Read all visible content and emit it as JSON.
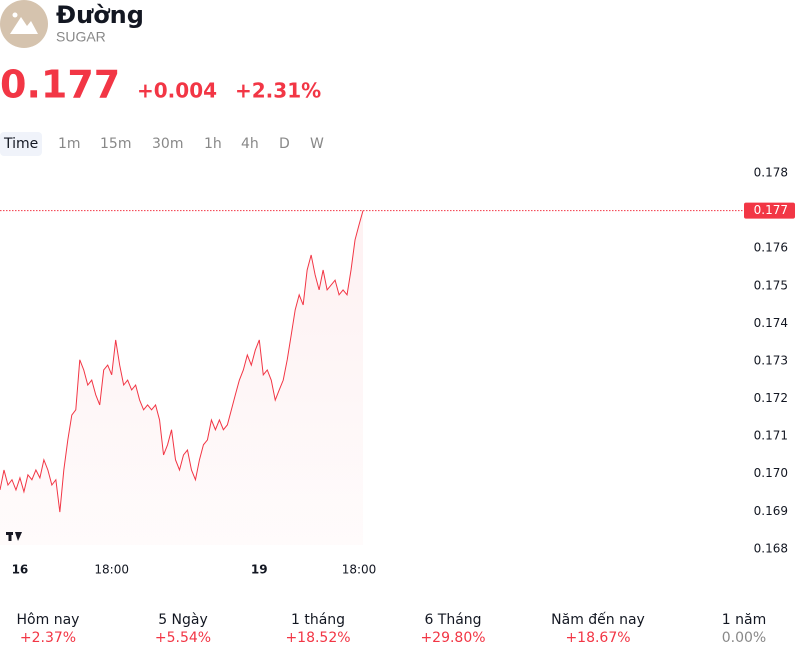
{
  "header": {
    "name": "Đường",
    "symbol": "SUGAR",
    "price": "0.177",
    "change": "+0.004",
    "change_percent": "+2.31%"
  },
  "intervals": [
    "Time",
    "1m",
    "15m",
    "30m",
    "1h",
    "4h",
    "D",
    "W"
  ],
  "chart_data": {
    "type": "line",
    "color": "#f23645",
    "categories": [
      null,
      null,
      null,
      null,
      null,
      "16",
      null,
      null,
      null,
      null,
      null,
      null,
      null,
      null,
      null,
      null,
      null,
      null,
      null,
      null,
      null,
      null,
      null,
      null,
      null,
      null,
      null,
      null,
      "18:00",
      null,
      null,
      null,
      null,
      null,
      null,
      null,
      null,
      null,
      null,
      null,
      null,
      null,
      null,
      null,
      null,
      null,
      null,
      null,
      null,
      null,
      null,
      null,
      null,
      null,
      null,
      null,
      null,
      null,
      null,
      null,
      null,
      null,
      null,
      null,
      null,
      "19",
      null,
      null,
      null,
      null,
      null,
      null,
      null,
      null,
      null,
      null,
      null,
      null,
      null,
      null,
      null,
      null,
      null,
      null,
      null,
      null,
      null,
      null,
      null,
      null,
      "18:00",
      null
    ],
    "values": [
      0.16957,
      0.1701,
      0.1697,
      0.16984,
      0.16957,
      0.16989,
      0.16952,
      0.16997,
      0.16984,
      0.1701,
      0.16989,
      0.17037,
      0.1701,
      0.1697,
      0.16984,
      0.16898,
      0.1701,
      0.1709,
      0.17156,
      0.1717,
      0.17303,
      0.17276,
      0.17236,
      0.17249,
      0.1721,
      0.17183,
      0.17276,
      0.17289,
      0.17263,
      0.17356,
      0.17289,
      0.17236,
      0.17249,
      0.17223,
      0.17236,
      0.17196,
      0.1717,
      0.17183,
      0.1717,
      0.17183,
      0.17143,
      0.1705,
      0.17077,
      0.17117,
      0.17037,
      0.1701,
      0.1705,
      0.17063,
      0.1701,
      0.16984,
      0.17037,
      0.17077,
      0.1709,
      0.17143,
      0.17117,
      0.17143,
      0.17117,
      0.1713,
      0.1717,
      0.1721,
      0.17249,
      0.17276,
      0.17316,
      0.17289,
      0.17329,
      0.17356,
      0.17263,
      0.17276,
      0.17249,
      0.17196,
      0.17223,
      0.17249,
      0.17303,
      0.17369,
      0.17436,
      0.17476,
      0.17449,
      0.17542,
      0.17582,
      0.17529,
      0.17489,
      0.17542,
      0.17489,
      0.17502,
      0.17515,
      0.17476,
      0.17489,
      0.17476,
      0.17542,
      0.17622,
      0.17662,
      0.177
    ],
    "last_price": 0.177,
    "ylim": [
      0.1677,
      0.1785
    ],
    "yticks": [
      0.168,
      0.169,
      {
        "value": 0.17,
        "label": "0.170"
      },
      0.171,
      0.172,
      0.173,
      0.174,
      0.175,
      0.176,
      0.177,
      0.178
    ]
  },
  "performance": [
    {
      "label": "Hôm nay",
      "value": "+2.37%",
      "color": "#f23645"
    },
    {
      "label": "5 Ngày",
      "value": "+5.54%",
      "color": "#f23645"
    },
    {
      "label": "1 tháng",
      "value": "+18.52%",
      "color": "#f23645"
    },
    {
      "label": "6 Tháng",
      "value": "+29.80%",
      "color": "#f23645"
    },
    {
      "label": "Năm đến nay",
      "value": "+18.67%",
      "color": "#f23645"
    },
    {
      "label": "1 năm",
      "value": "0.00%",
      "color": "#888888"
    }
  ]
}
